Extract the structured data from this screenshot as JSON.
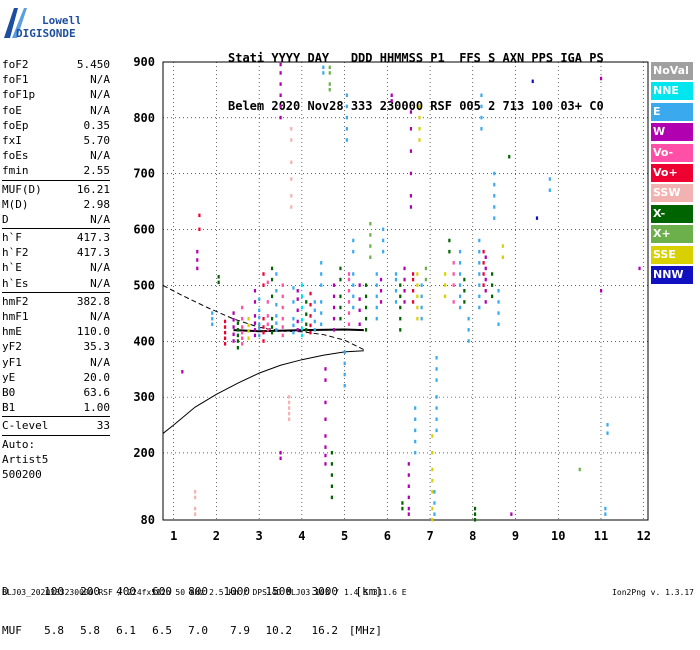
{
  "logo": {
    "line1": "Lowell",
    "line2": "DIGISONDE"
  },
  "header": {
    "labels": "Stati YYYY DAY   DDD HHMMSS P1  FFS S AXN PPS IGA PS",
    "values": "Belem 2020 Nov28 333 230000 RSF 005 2 713 100 03+ C0"
  },
  "params": {
    "group1": [
      {
        "label": "foF2",
        "value": "5.450"
      },
      {
        "label": "foF1",
        "value": "N/A"
      },
      {
        "label": "foF1p",
        "value": "N/A"
      },
      {
        "label": "foE",
        "value": "N/A"
      },
      {
        "label": "foEp",
        "value": "0.35"
      },
      {
        "label": "fxI",
        "value": "5.70"
      },
      {
        "label": "foEs",
        "value": "N/A"
      },
      {
        "label": "fmin",
        "value": "2.55"
      }
    ],
    "group2": [
      {
        "label": "MUF(D)",
        "value": "16.21"
      },
      {
        "label": "M(D)",
        "value": "2.98"
      },
      {
        "label": "D",
        "value": "N/A"
      }
    ],
    "group3": [
      {
        "label": "h`F",
        "value": "417.3"
      },
      {
        "label": "h`F2",
        "value": "417.3"
      },
      {
        "label": "h`E",
        "value": "N/A"
      },
      {
        "label": "h`Es",
        "value": "N/A"
      }
    ],
    "group4": [
      {
        "label": "hmF2",
        "value": "382.8"
      },
      {
        "label": "hmF1",
        "value": "N/A"
      },
      {
        "label": "hmE",
        "value": "110.0"
      },
      {
        "label": "yF2",
        "value": "35.3"
      },
      {
        "label": "yF1",
        "value": "N/A"
      },
      {
        "label": "yE",
        "value": "20.0"
      },
      {
        "label": "B0",
        "value": "63.6"
      },
      {
        "label": "B1",
        "value": "1.00"
      }
    ],
    "group5": [
      {
        "label": "C-level",
        "value": "33"
      }
    ],
    "auto": [
      "Auto:",
      "Artist5",
      "500200"
    ]
  },
  "legend": [
    {
      "label": "NoVal",
      "color": "#a0a0a0"
    },
    {
      "label": "NNE",
      "color": "#00e5ee"
    },
    {
      "label": "E",
      "color": "#3aa9ee"
    },
    {
      "label": "W",
      "color": "#b000b0"
    },
    {
      "label": "Vo-",
      "color": "#ff4fa6"
    },
    {
      "label": "Vo+",
      "color": "#ee0030"
    },
    {
      "label": "SSW",
      "color": "#f3b2b2"
    },
    {
      "label": "X-",
      "color": "#006400"
    },
    {
      "label": "X+",
      "color": "#6cb04c"
    },
    {
      "label": "SSE",
      "color": "#d8d000"
    },
    {
      "label": "NNW",
      "color": "#1010c0"
    }
  ],
  "muf_table": {
    "d_label": "D",
    "d_values": [
      "100",
      "200",
      "400",
      "600",
      "800",
      "1000",
      "1500",
      "3000"
    ],
    "d_unit": "[km]",
    "muf_label": "MUF",
    "muf_values": [
      "5.8",
      "5.8",
      "6.1",
      "6.5",
      "7.0",
      "7.9",
      "10.2",
      "16.2"
    ],
    "muf_unit": "[MHz]"
  },
  "footer": "BLJ03_2020333230000.RSF / 224fx512h 50 kHz 2.5 km / DPS-4D BLJ03 103 / 1.4 S 311.6 E",
  "version": "Ion2Png v. 1.3.17",
  "chart_data": {
    "type": "scatter",
    "x_ticks": [
      1,
      2,
      3,
      4,
      5,
      6,
      7,
      8,
      9,
      10,
      11,
      12
    ],
    "y_ticks": [
      80,
      200,
      300,
      400,
      500,
      600,
      700,
      800,
      900
    ],
    "xlim": [
      0.75,
      12.1
    ],
    "ylim": [
      80,
      900
    ],
    "grid": true,
    "curves": [
      {
        "style": "solid",
        "points": [
          [
            0.75,
            235
          ],
          [
            1,
            250
          ],
          [
            1.5,
            282
          ],
          [
            2,
            305
          ],
          [
            2.5,
            325
          ],
          [
            3,
            343
          ],
          [
            3.5,
            357
          ],
          [
            4,
            367
          ],
          [
            4.5,
            375
          ],
          [
            5,
            381
          ],
          [
            5.45,
            383
          ]
        ]
      },
      {
        "style": "dashed",
        "points": [
          [
            0.75,
            500
          ],
          [
            1.2,
            482
          ],
          [
            1.8,
            460
          ],
          [
            2.4,
            440
          ],
          [
            3,
            425
          ],
          [
            3.6,
            418
          ],
          [
            4,
            417
          ],
          [
            4.5,
            412
          ],
          [
            5,
            402
          ],
          [
            5.45,
            385
          ]
        ]
      }
    ],
    "trace": {
      "color": "#000000",
      "points": [
        [
          2.4,
          420
        ],
        [
          3,
          418
        ],
        [
          4,
          420
        ],
        [
          5,
          421
        ],
        [
          5.45,
          420
        ]
      ]
    },
    "echoes": [
      {
        "x": 1.5,
        "y": [
          90,
          100,
          120,
          130
        ],
        "c": "#f3b2b2"
      },
      {
        "x": 1.55,
        "y": [
          530,
          545,
          560
        ],
        "c": "#b000b0"
      },
      {
        "x": 1.6,
        "y": [
          600,
          625
        ],
        "c": "#ee0030"
      },
      {
        "x": 1.2,
        "y": [
          345
        ],
        "c": "#b000b0"
      },
      {
        "x": 1.9,
        "y": [
          430,
          440,
          450
        ],
        "c": "#3aa9ee"
      },
      {
        "x": 2.05,
        "y": [
          505,
          515
        ],
        "c": "#006400"
      },
      {
        "x": 2.2,
        "y": [
          395,
          405,
          415,
          425,
          435
        ],
        "c": "#ee0030"
      },
      {
        "x": 2.4,
        "y": [
          400,
          412,
          425,
          438,
          450
        ],
        "c": "#b000b0"
      },
      {
        "x": 2.5,
        "y": [
          388,
          400,
          410,
          420,
          432
        ],
        "c": "#006400"
      },
      {
        "x": 2.6,
        "y": [
          395,
          405,
          415,
          425,
          440,
          460
        ],
        "c": "#ff4fa6"
      },
      {
        "x": 2.75,
        "y": [
          405,
          418,
          428,
          440
        ],
        "c": "#d8d000"
      },
      {
        "x": 2.9,
        "y": [
          410,
          420,
          432,
          445,
          470,
          490
        ],
        "c": "#b000b0"
      },
      {
        "x": 3.0,
        "y": [
          410,
          422,
          430,
          442,
          455,
          475
        ],
        "c": "#3aa9ee"
      },
      {
        "x": 3.1,
        "y": [
          400,
          415,
          425,
          440,
          500,
          520
        ],
        "c": "#ee0030"
      },
      {
        "x": 3.2,
        "y": [
          420,
          430,
          445,
          470,
          505
        ],
        "c": "#ff4fa6"
      },
      {
        "x": 3.3,
        "y": [
          415,
          425,
          440,
          480,
          510,
          530
        ],
        "c": "#006400"
      },
      {
        "x": 3.4,
        "y": [
          420,
          432,
          445,
          465,
          490,
          520
        ],
        "c": "#3aa9ee"
      },
      {
        "x": 3.5,
        "y": [
          800,
          820,
          840,
          860,
          880,
          895
        ],
        "c": "#b000b0"
      },
      {
        "x": 3.5,
        "y": [
          190,
          200
        ],
        "c": "#b000b0"
      },
      {
        "x": 3.55,
        "y": [
          410,
          425,
          440,
          460,
          480,
          500
        ],
        "c": "#ff4fa6"
      },
      {
        "x": 3.7,
        "y": [
          260,
          270,
          280,
          290,
          300
        ],
        "c": "#f3b2b2"
      },
      {
        "x": 3.75,
        "y": [
          640,
          660,
          690,
          720,
          760,
          780
        ],
        "c": "#f3b2b2"
      },
      {
        "x": 3.8,
        "y": [
          415,
          428,
          440,
          470,
          495
        ],
        "c": "#3aa9ee"
      },
      {
        "x": 3.9,
        "y": [
          420,
          435,
          455,
          475,
          490
        ],
        "c": "#b000b0"
      },
      {
        "x": 4.0,
        "y": [
          410,
          422,
          438,
          460,
          480,
          500
        ],
        "c": "#00e5ee"
      },
      {
        "x": 4.1,
        "y": [
          420,
          430,
          448,
          470
        ],
        "c": "#006400"
      },
      {
        "x": 4.2,
        "y": [
          415,
          428,
          445,
          465,
          485
        ],
        "c": "#ee0030"
      },
      {
        "x": 4.3,
        "y": [
          420,
          435,
          455,
          470
        ],
        "c": "#3aa9ee"
      },
      {
        "x": 4.45,
        "y": [
          430,
          450,
          470,
          500,
          520,
          540
        ],
        "c": "#3aa9ee"
      },
      {
        "x": 4.5,
        "y": [
          880,
          890
        ],
        "c": "#3aa9ee"
      },
      {
        "x": 4.55,
        "y": [
          180,
          195,
          210,
          230,
          260,
          290,
          330,
          350
        ],
        "c": "#b000b0"
      },
      {
        "x": 4.65,
        "y": [
          850,
          860,
          880,
          890
        ],
        "c": "#6cb04c"
      },
      {
        "x": 4.7,
        "y": [
          120,
          140,
          160,
          180,
          200
        ],
        "c": "#006400"
      },
      {
        "x": 4.75,
        "y": [
          420,
          440,
          460,
          480,
          500
        ],
        "c": "#b000b0"
      },
      {
        "x": 4.9,
        "y": [
          440,
          460,
          480,
          510,
          530
        ],
        "c": "#006400"
      },
      {
        "x": 5.0,
        "y": [
          320,
          340,
          360,
          380
        ],
        "c": "#3aa9ee"
      },
      {
        "x": 5.05,
        "y": [
          760,
          780,
          800,
          820,
          840
        ],
        "c": "#3aa9ee"
      },
      {
        "x": 5.1,
        "y": [
          430,
          450,
          470,
          490,
          510,
          520
        ],
        "c": "#ff4fa6"
      },
      {
        "x": 5.2,
        "y": [
          460,
          480,
          500,
          520,
          560,
          580
        ],
        "c": "#3aa9ee"
      },
      {
        "x": 5.35,
        "y": [
          430,
          455,
          475,
          500
        ],
        "c": "#b000b0"
      },
      {
        "x": 5.5,
        "y": [
          420,
          440,
          460,
          480,
          500
        ],
        "c": "#006400"
      },
      {
        "x": 5.6,
        "y": [
          550,
          570,
          590,
          610
        ],
        "c": "#6cb04c"
      },
      {
        "x": 5.75,
        "y": [
          440,
          460,
          480,
          500,
          520
        ],
        "c": "#3aa9ee"
      },
      {
        "x": 5.85,
        "y": [
          470,
          490,
          510
        ],
        "c": "#b000b0"
      },
      {
        "x": 5.9,
        "y": [
          560,
          580,
          600
        ],
        "c": "#3aa9ee"
      },
      {
        "x": 6.1,
        "y": [
          830,
          840
        ],
        "c": "#b000b0"
      },
      {
        "x": 6.2,
        "y": [
          470,
          490,
          510,
          520
        ],
        "c": "#3aa9ee"
      },
      {
        "x": 6.3,
        "y": [
          420,
          440,
          460,
          480,
          500
        ],
        "c": "#006400"
      },
      {
        "x": 6.35,
        "y": [
          100,
          110
        ],
        "c": "#006400"
      },
      {
        "x": 6.4,
        "y": [
          470,
          490,
          510,
          530
        ],
        "c": "#b000b0"
      },
      {
        "x": 6.5,
        "y": [
          90,
          100,
          120,
          140,
          160,
          180
        ],
        "c": "#b000b0"
      },
      {
        "x": 6.55,
        "y": [
          640,
          660,
          700,
          740,
          780,
          810
        ],
        "c": "#b000b0"
      },
      {
        "x": 6.6,
        "y": [
          470,
          490,
          510,
          520
        ],
        "c": "#ee0030"
      },
      {
        "x": 6.65,
        "y": [
          200,
          220,
          240,
          260,
          280
        ],
        "c": "#3aa9ee"
      },
      {
        "x": 6.7,
        "y": [
          440,
          460,
          480,
          500,
          520
        ],
        "c": "#d8d000"
      },
      {
        "x": 6.75,
        "y": [
          760,
          780,
          800,
          820
        ],
        "c": "#d8d000"
      },
      {
        "x": 6.8,
        "y": [
          440,
          460,
          480,
          500
        ],
        "c": "#3aa9ee"
      },
      {
        "x": 6.9,
        "y": [
          510,
          530
        ],
        "c": "#6cb04c"
      },
      {
        "x": 7.05,
        "y": [
          80,
          100,
          130,
          150,
          170,
          200,
          230
        ],
        "c": "#d8d000"
      },
      {
        "x": 7.1,
        "y": [
          90,
          110,
          130
        ],
        "c": "#3aa9ee"
      },
      {
        "x": 7.15,
        "y": [
          240,
          260,
          280,
          300,
          330,
          350,
          370
        ],
        "c": "#3aa9ee"
      },
      {
        "x": 7.35,
        "y": [
          480,
          500,
          520
        ],
        "c": "#d8d000"
      },
      {
        "x": 7.45,
        "y": [
          560,
          580
        ],
        "c": "#006400"
      },
      {
        "x": 7.55,
        "y": [
          470,
          500,
          520,
          540
        ],
        "c": "#ff4fa6"
      },
      {
        "x": 7.7,
        "y": [
          460,
          480,
          500,
          520,
          540,
          560
        ],
        "c": "#3aa9ee"
      },
      {
        "x": 7.8,
        "y": [
          470,
          490,
          510
        ],
        "c": "#006400"
      },
      {
        "x": 7.9,
        "y": [
          400,
          420,
          440
        ],
        "c": "#3aa9ee"
      },
      {
        "x": 8.05,
        "y": [
          80,
          90,
          100
        ],
        "c": "#006400"
      },
      {
        "x": 8.15,
        "y": [
          460,
          480,
          500,
          520,
          540,
          560,
          580
        ],
        "c": "#3aa9ee"
      },
      {
        "x": 8.2,
        "y": [
          780,
          800,
          820,
          840
        ],
        "c": "#3aa9ee"
      },
      {
        "x": 8.25,
        "y": [
          500,
          520,
          540,
          560
        ],
        "c": "#ee0030"
      },
      {
        "x": 8.3,
        "y": [
          470,
          490,
          510,
          530,
          550
        ],
        "c": "#b000b0"
      },
      {
        "x": 8.45,
        "y": [
          480,
          500,
          520
        ],
        "c": "#006400"
      },
      {
        "x": 8.5,
        "y": [
          620,
          640,
          660,
          680,
          700
        ],
        "c": "#3aa9ee"
      },
      {
        "x": 8.6,
        "y": [
          430,
          450,
          470,
          490
        ],
        "c": "#3aa9ee"
      },
      {
        "x": 8.7,
        "y": [
          550,
          570
        ],
        "c": "#d8d000"
      },
      {
        "x": 8.85,
        "y": [
          730
        ],
        "c": "#006400"
      },
      {
        "x": 8.9,
        "y": [
          90
        ],
        "c": "#b000b0"
      },
      {
        "x": 9.4,
        "y": [
          865
        ],
        "c": "#1010c0"
      },
      {
        "x": 9.5,
        "y": [
          620
        ],
        "c": "#1010c0"
      },
      {
        "x": 9.8,
        "y": [
          670,
          690
        ],
        "c": "#3aa9ee"
      },
      {
        "x": 10.5,
        "y": [
          170
        ],
        "c": "#6cb04c"
      },
      {
        "x": 11.0,
        "y": [
          870
        ],
        "c": "#b000b0"
      },
      {
        "x": 11.0,
        "y": [
          490
        ],
        "c": "#b000b0"
      },
      {
        "x": 11.1,
        "y": [
          90,
          100
        ],
        "c": "#3aa9ee"
      },
      {
        "x": 11.15,
        "y": [
          235,
          250
        ],
        "c": "#3aa9ee"
      },
      {
        "x": 11.9,
        "y": [
          530
        ],
        "c": "#b000b0"
      }
    ]
  }
}
